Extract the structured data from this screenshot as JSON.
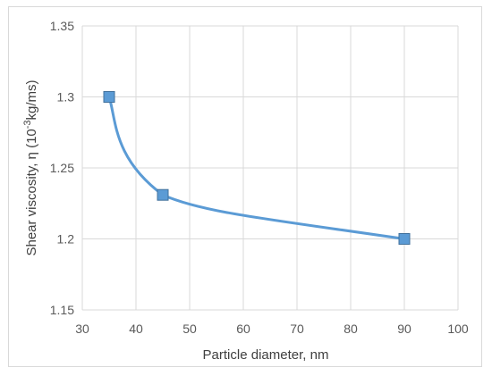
{
  "chart_data": {
    "type": "line",
    "title": "",
    "xlabel": "Particle diameter, nm",
    "ylabel_prefix": "Shear viscosity, η (10",
    "ylabel_exp": "-3",
    "ylabel_suffix": "kg/ms)",
    "xlim": [
      30,
      100
    ],
    "ylim": [
      1.15,
      1.35
    ],
    "x_ticks": [
      30,
      40,
      50,
      60,
      70,
      80,
      90,
      100
    ],
    "y_ticks": [
      "1.15",
      "1.2",
      "1.25",
      "1.3",
      "1.35"
    ],
    "grid": true,
    "legend": "none",
    "series": [
      {
        "x": [
          35,
          45,
          90
        ],
        "y": [
          1.3,
          1.231,
          1.2
        ],
        "color": "#5b9bd5",
        "marker": "square",
        "smooth": true
      }
    ]
  }
}
